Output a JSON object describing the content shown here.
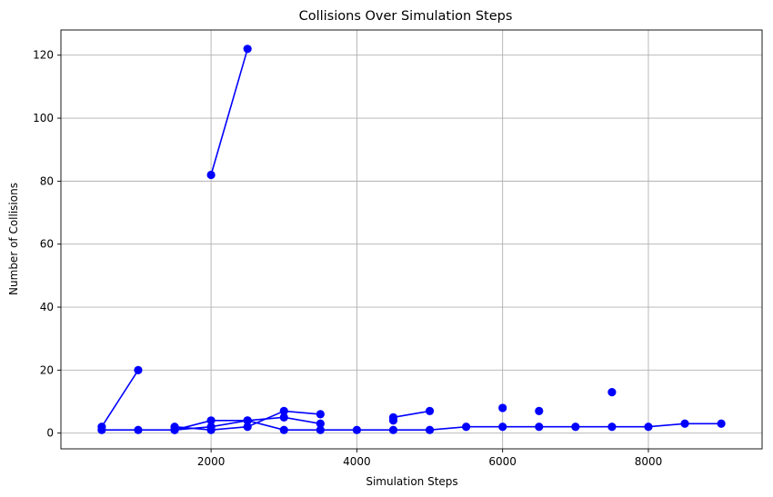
{
  "chart_data": {
    "type": "line",
    "title": "Collisions Over Simulation Steps",
    "xlabel": "Simulation Steps",
    "ylabel": "Number of Collisions",
    "xlim": [
      -60,
      9560
    ],
    "ylim": [
      -5,
      128
    ],
    "xticks": [
      2000,
      4000,
      6000,
      8000
    ],
    "yticks": [
      0,
      20,
      40,
      60,
      80,
      100,
      120
    ],
    "grid": true,
    "color": "#0000ff",
    "series": [
      {
        "x": [
          500,
          1000
        ],
        "y": [
          2,
          20
        ]
      },
      {
        "x": [
          1500,
          2000,
          2500,
          3000,
          3500
        ],
        "y": [
          1,
          4,
          4,
          5,
          3
        ]
      },
      {
        "x": [
          2000,
          2500
        ],
        "y": [
          82,
          122
        ]
      },
      {
        "x": [
          1500,
          2000,
          2500,
          3000,
          3500
        ],
        "y": [
          2,
          1,
          2,
          7,
          6
        ]
      },
      {
        "x": [
          4500,
          5000
        ],
        "y": [
          5,
          7
        ]
      },
      {
        "x": [
          500,
          1000,
          1500,
          2000,
          2500,
          3000,
          3500,
          4000,
          4500,
          5000,
          5500,
          6000,
          6500,
          7000,
          7500,
          8000,
          8500,
          9000
        ],
        "y": [
          1,
          1,
          1,
          2,
          4,
          1,
          1,
          1,
          1,
          1,
          2,
          2,
          2,
          2,
          2,
          2,
          3,
          3
        ]
      },
      {
        "x": [
          4500,
          6000,
          6500,
          7500
        ],
        "y": [
          4,
          8,
          7,
          13
        ],
        "markers_only": true
      }
    ]
  }
}
